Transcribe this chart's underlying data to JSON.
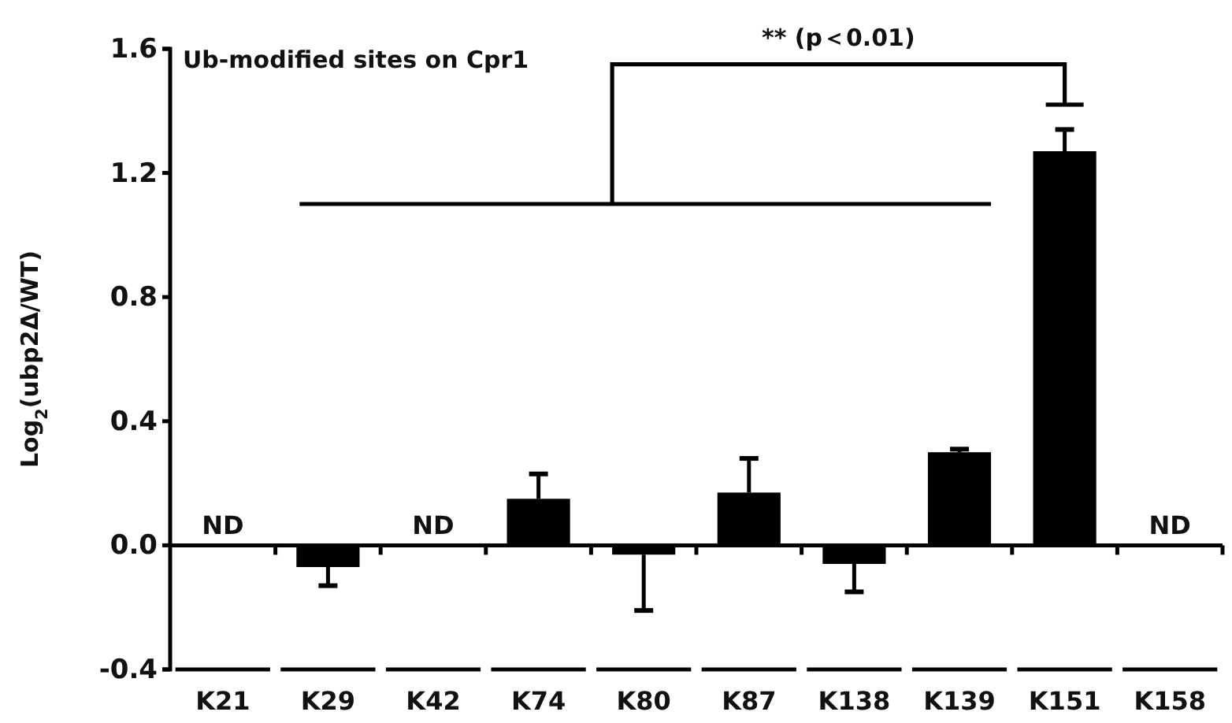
{
  "chart_data": {
    "type": "bar",
    "title": "Ub-modified sites on Cpr1",
    "ylabel": "Log$_{2}$(ubp2Δ/WT)",
    "categories": [
      "K21",
      "K29",
      "K42",
      "K74",
      "K80",
      "K87",
      "K138",
      "K139",
      "K151",
      "K158"
    ],
    "values": [
      null,
      -0.07,
      null,
      0.15,
      -0.03,
      0.17,
      -0.06,
      0.3,
      1.27,
      null
    ],
    "errors": [
      null,
      [
        -0.13,
        -0.07
      ],
      null,
      [
        0.15,
        0.23
      ],
      [
        -0.21,
        -0.03
      ],
      [
        0.17,
        0.28
      ],
      [
        -0.15,
        -0.06
      ],
      [
        0.3,
        0.31
      ],
      [
        1.27,
        1.34
      ],
      null
    ],
    "color": "#000000",
    "ylim": [
      -0.4,
      1.6
    ],
    "yticks": [
      {
        "value": -0.4,
        "label": "-0.4"
      },
      {
        "value": 0,
        "label": "0.0"
      },
      {
        "value": 0.4,
        "label": "0.4"
      },
      {
        "value": 0.8,
        "label": "0.8"
      },
      {
        "value": 1.2,
        "label": "1.2"
      },
      {
        "value": 1.6,
        "label": "1.6"
      }
    ],
    "value_labels": [
      "ND",
      null,
      "ND",
      null,
      null,
      null,
      null,
      null,
      null,
      "ND"
    ],
    "annotations": [
      "** (p＜0.01)"
    ]
  }
}
